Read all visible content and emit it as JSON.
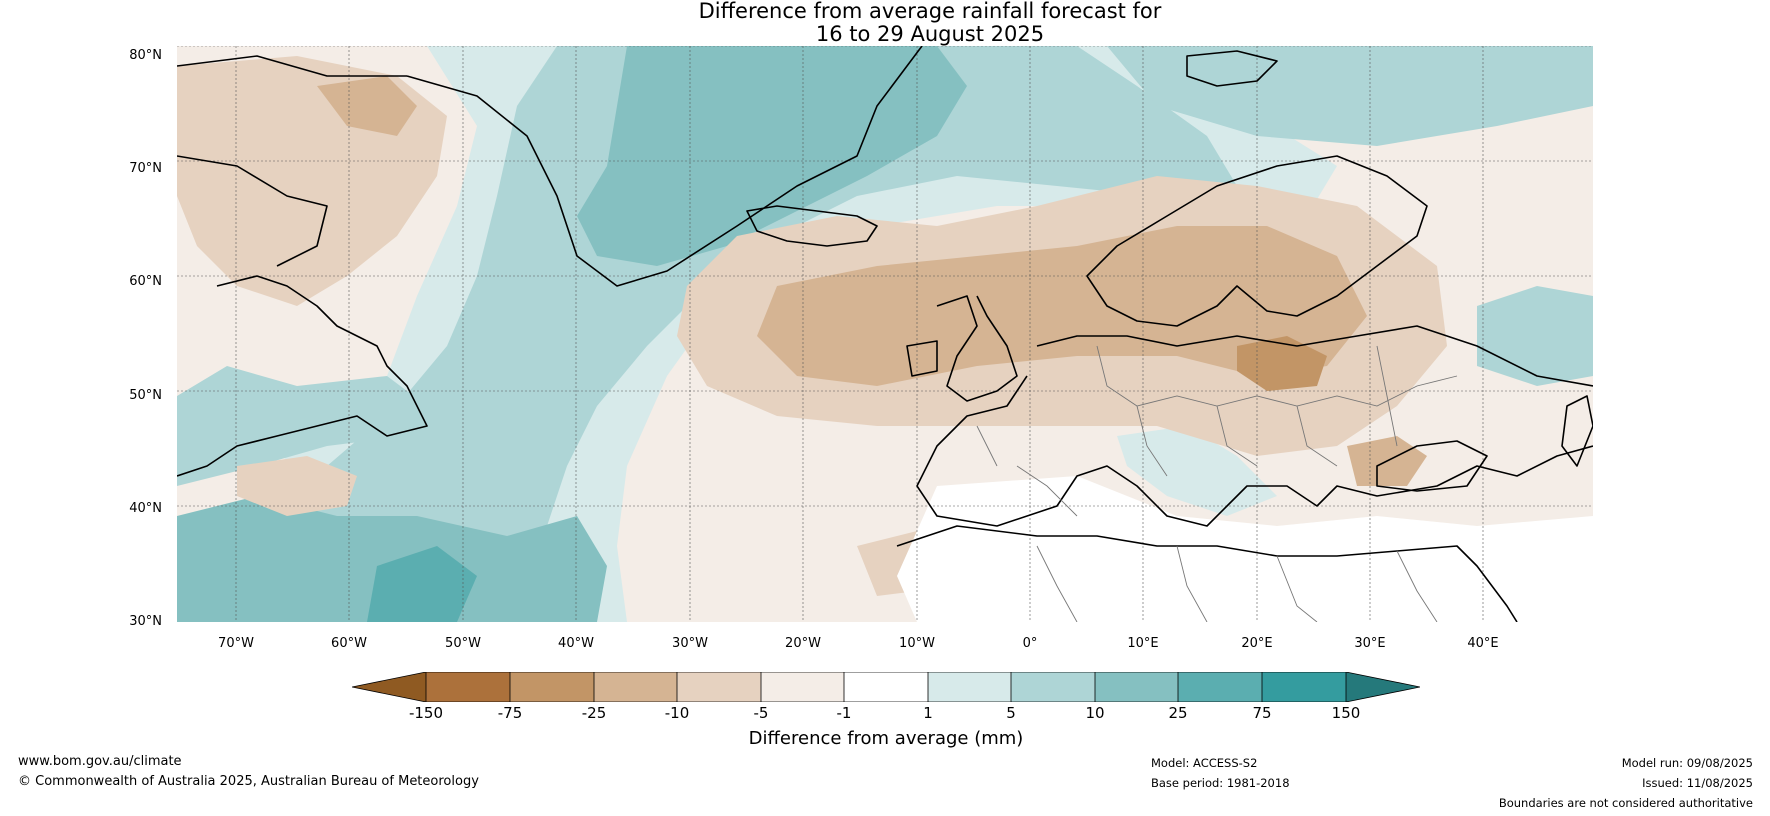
{
  "title": {
    "line1": "Difference from average rainfall forecast for",
    "line2": "16 to 29 August 2025"
  },
  "map": {
    "lat_labels": [
      "80°N",
      "70°N",
      "60°N",
      "50°N",
      "40°N",
      "30°N"
    ],
    "lon_labels": [
      "70°W",
      "60°W",
      "50°W",
      "40°W",
      "30°W",
      "20°W",
      "10°W",
      "0°",
      "10°E",
      "20°E",
      "30°E",
      "40°E"
    ]
  },
  "legend": {
    "title": "Difference from average (mm)",
    "tick_labels": [
      "-150",
      "-75",
      "-25",
      "-10",
      "-5",
      "-1",
      "1",
      "5",
      "10",
      "25",
      "75",
      "150"
    ],
    "colors": [
      "#8f5a22",
      "#ac713b",
      "#c29566",
      "#d5b493",
      "#e6d2c0",
      "#f4ede7",
      "#ffffff",
      "#d7eaea",
      "#aed5d6",
      "#85c0c1",
      "#5baeb0",
      "#349c9f",
      "#25797b"
    ]
  },
  "footer": {
    "website": "www.bom.gov.au/climate",
    "copyright": "© Commonwealth of Australia 2025, Australian Bureau of Meteorology",
    "model": "Model: ACCESS-S2",
    "base_period": "Base period: 1981-2018",
    "model_run": "Model run: 09/08/2025",
    "issued": "Issued: 11/08/2025",
    "disclaimer": "Boundaries are not considered authoritative"
  }
}
